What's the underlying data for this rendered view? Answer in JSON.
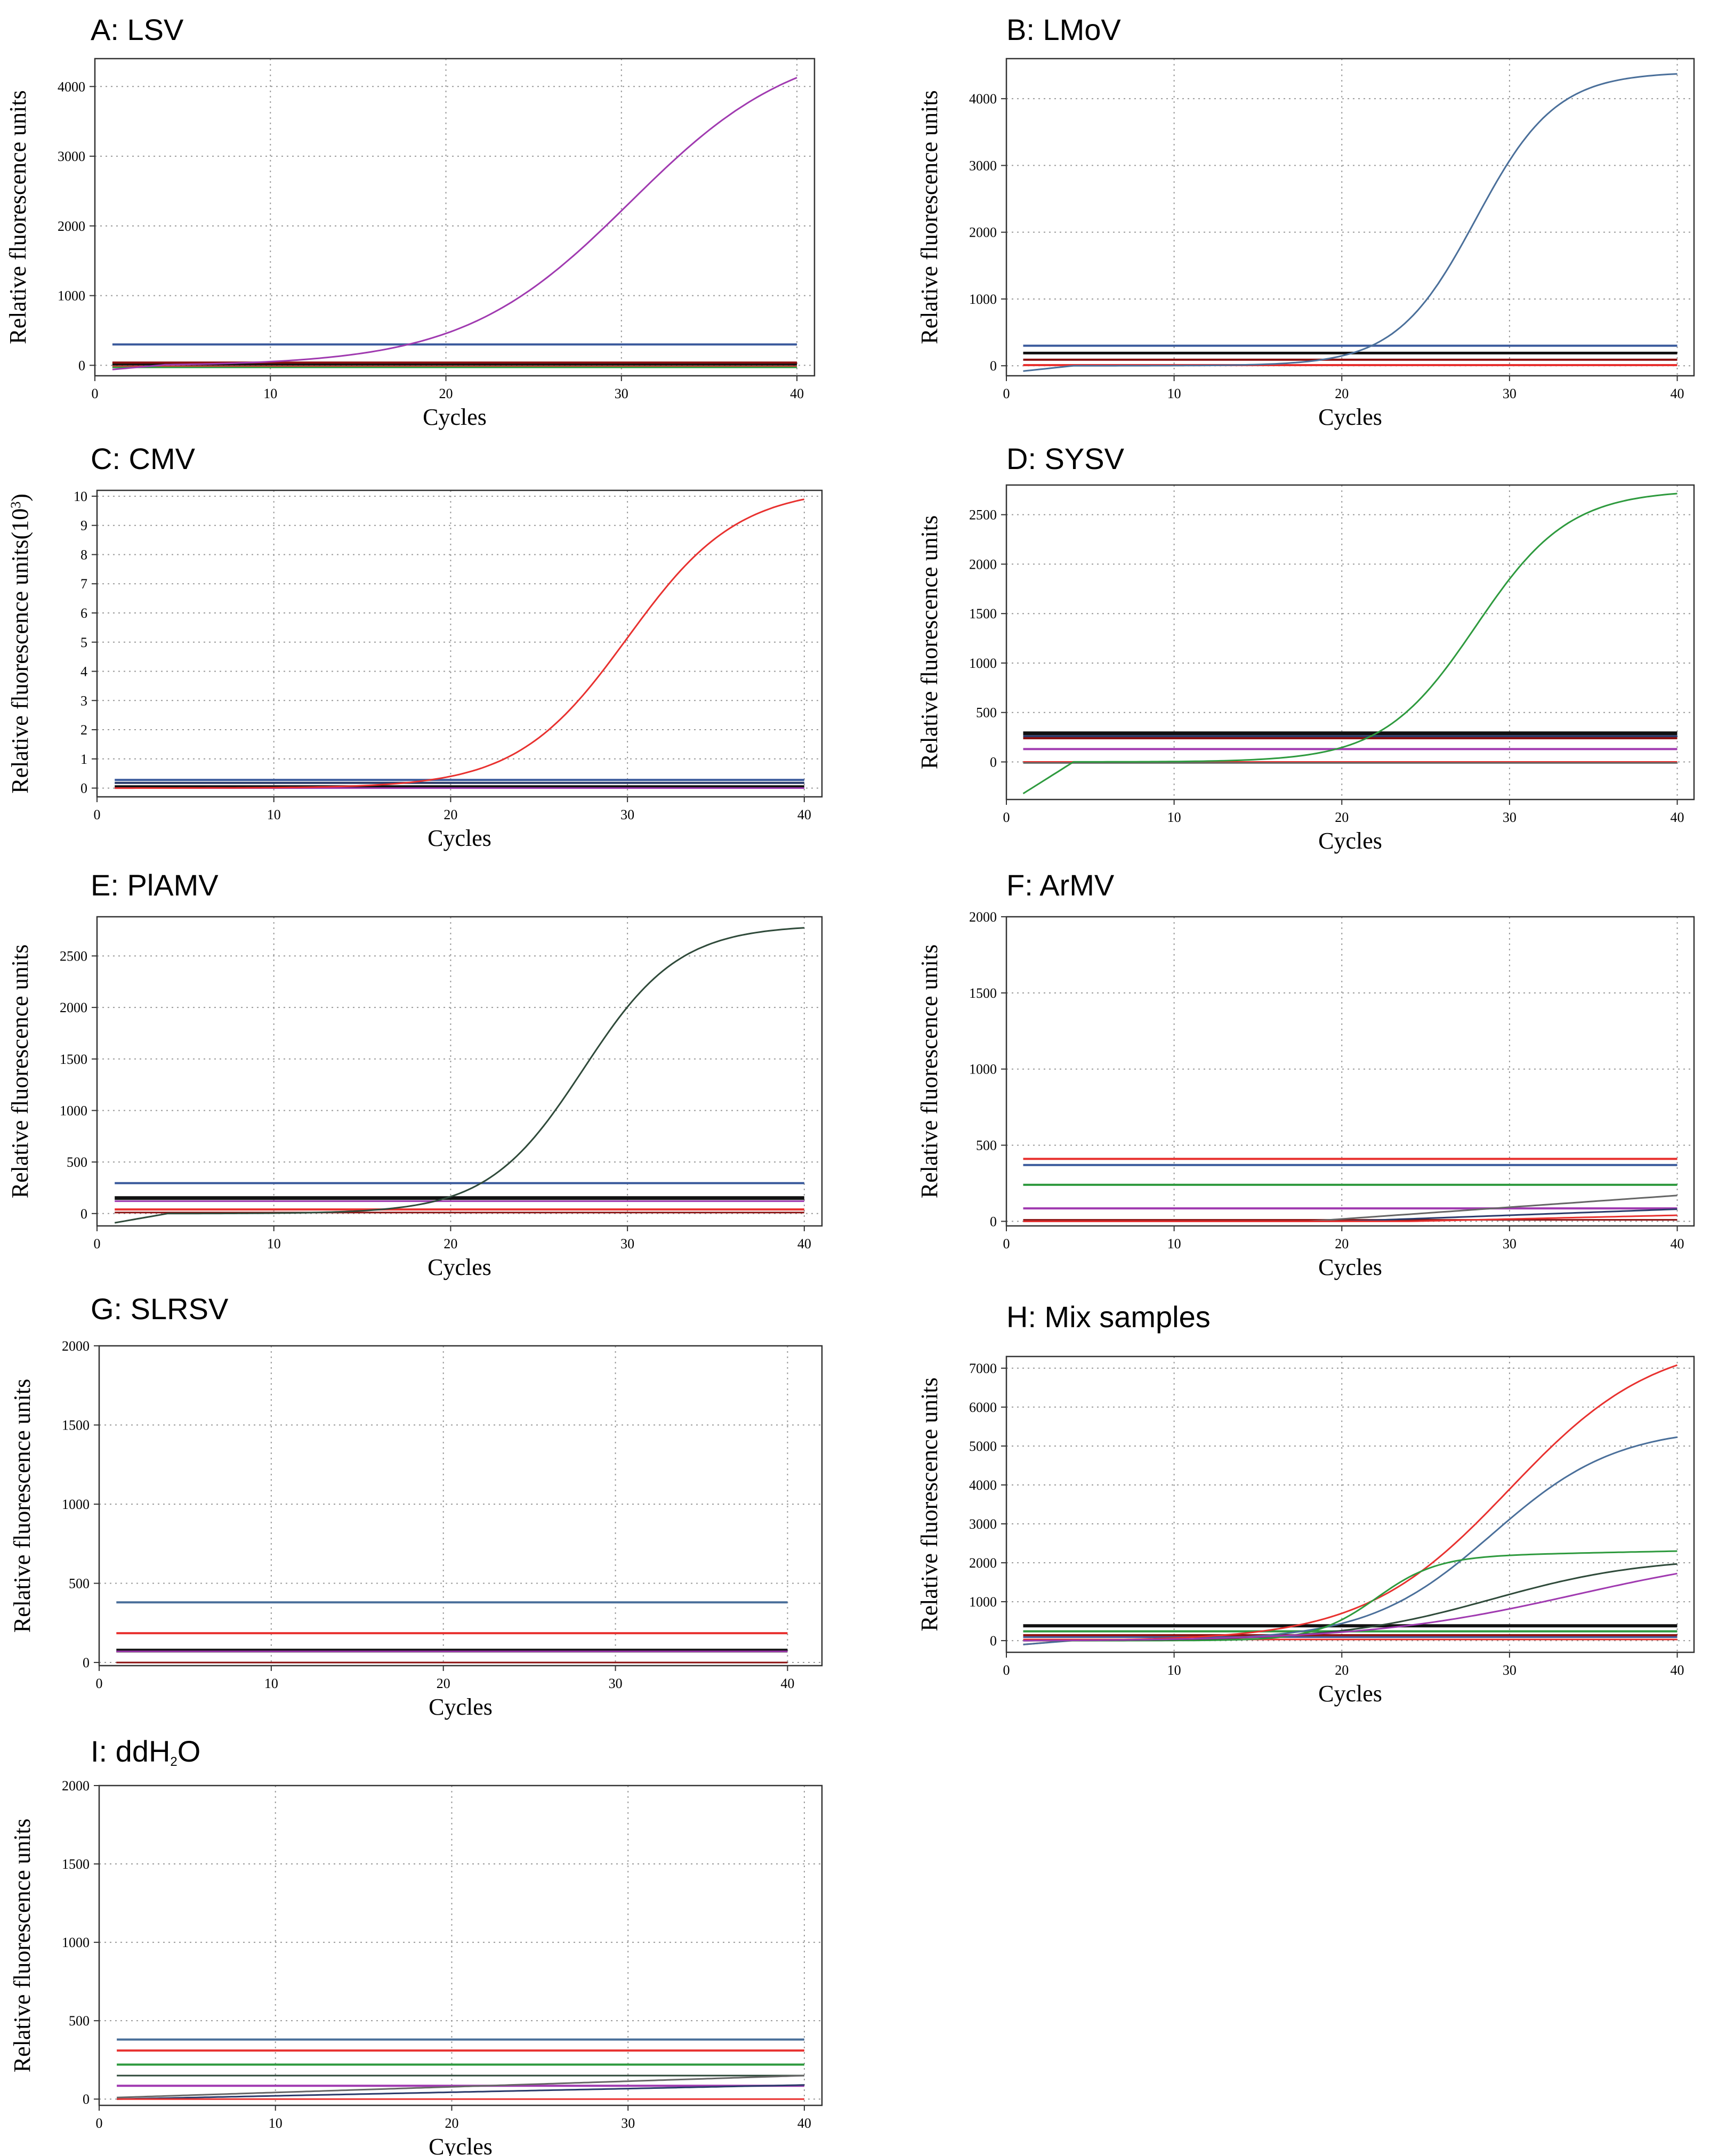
{
  "colors": {
    "red": "#e8312f",
    "blue": "#3a5a9c",
    "purple": "#a03ab0",
    "green": "#2e9a3e",
    "black": "#111111",
    "darkred": "#8b1010",
    "darkgreen": "#2f4a3a",
    "grey": "#666666",
    "navy": "#2a3a6a",
    "steel": "#4a6f9a"
  },
  "chart_data": [
    {
      "id": "A",
      "title": "A: LSV",
      "type": "line",
      "xlabel": "Cycles",
      "ylabel": "Relative fluorescence units",
      "xlim": [
        0,
        41
      ],
      "ylim": [
        -150,
        4400
      ],
      "xticks": [
        0,
        10,
        20,
        30,
        40
      ],
      "yticks": [
        0,
        1000,
        2000,
        3000,
        4000
      ],
      "ytick_labels": [
        "0",
        "1000",
        "2000",
        "3000",
        "4000"
      ],
      "series": [
        {
          "color": "blue",
          "kind": "flat",
          "value": 300,
          "width": 4
        },
        {
          "color": "black",
          "kind": "flat",
          "value": 20,
          "width": 6
        },
        {
          "color": "red",
          "kind": "flat",
          "value": -20,
          "width": 4
        },
        {
          "color": "green",
          "kind": "flat",
          "value": -30,
          "width": 3
        },
        {
          "color": "darkred",
          "kind": "flat",
          "value": 40,
          "width": 4
        },
        {
          "color": "purple",
          "kind": "sigmoid",
          "base": 0,
          "amp": 4700,
          "mid": 30.5,
          "k": 0.21,
          "start": -60
        }
      ]
    },
    {
      "id": "B",
      "title": "B: LMoV",
      "type": "line",
      "xlabel": "Cycles",
      "ylabel": "Relative fluorescence units",
      "xlim": [
        0,
        41
      ],
      "ylim": [
        -150,
        4600
      ],
      "xticks": [
        0,
        10,
        20,
        30,
        40
      ],
      "yticks": [
        0,
        1000,
        2000,
        3000,
        4000
      ],
      "ytick_labels": [
        "0",
        "1000",
        "2000",
        "3000",
        "4000"
      ],
      "series": [
        {
          "color": "blue",
          "kind": "flat",
          "value": 300,
          "width": 4
        },
        {
          "color": "black",
          "kind": "flat",
          "value": 190,
          "width": 5
        },
        {
          "color": "darkred",
          "kind": "flat",
          "value": 90,
          "width": 4
        },
        {
          "color": "red",
          "kind": "flat",
          "value": 10,
          "width": 4
        },
        {
          "color": "steel",
          "kind": "sigmoid",
          "base": 0,
          "amp": 4400,
          "mid": 28.0,
          "k": 0.42,
          "start": -80
        }
      ]
    },
    {
      "id": "C",
      "title": "C: CMV",
      "type": "line",
      "xlabel": "Cycles",
      "ylabel": "Relative fluorescence units(10",
      "ylabel_sup": "3",
      "ylabel_end": ")",
      "xlim": [
        0,
        41
      ],
      "ylim": [
        -0.3,
        10.2
      ],
      "xticks": [
        0,
        10,
        20,
        30,
        40
      ],
      "yticks": [
        0,
        1,
        2,
        3,
        4,
        5,
        6,
        7,
        8,
        9,
        10
      ],
      "ytick_labels": [
        "0",
        "1",
        "2",
        "3",
        "4",
        "5",
        "6",
        "7",
        "8",
        "9",
        "10"
      ],
      "series": [
        {
          "color": "blue",
          "kind": "flat",
          "value": 0.28,
          "width": 4
        },
        {
          "color": "navy",
          "kind": "flat",
          "value": 0.18,
          "width": 4
        },
        {
          "color": "black",
          "kind": "flat",
          "value": 0.05,
          "width": 5
        },
        {
          "color": "purple",
          "kind": "flat",
          "value": 0.0,
          "width": 3
        },
        {
          "color": "red",
          "kind": "sigmoid",
          "base": 0,
          "amp": 10.3,
          "mid": 30.0,
          "k": 0.32,
          "start": 0
        }
      ]
    },
    {
      "id": "D",
      "title": "D: SYSV",
      "type": "line",
      "xlabel": "Cycles",
      "ylabel": "Relative fluorescence units",
      "xlim": [
        0,
        41
      ],
      "ylim": [
        -380,
        2800
      ],
      "xticks": [
        0,
        10,
        20,
        30,
        40
      ],
      "yticks": [
        0,
        500,
        1000,
        1500,
        2000,
        2500
      ],
      "ytick_labels": [
        "0",
        "500",
        "1000",
        "1500",
        "2000",
        "2500"
      ],
      "series": [
        {
          "color": "black",
          "kind": "flat",
          "value": 290,
          "width": 7
        },
        {
          "color": "navy",
          "kind": "flat",
          "value": 260,
          "width": 4
        },
        {
          "color": "darkred",
          "kind": "flat",
          "value": 240,
          "width": 4
        },
        {
          "color": "purple",
          "kind": "flat",
          "value": 130,
          "width": 4
        },
        {
          "color": "red",
          "kind": "flat",
          "value": 0,
          "width": 3
        },
        {
          "color": "grey",
          "kind": "flat",
          "value": -10,
          "width": 3
        },
        {
          "color": "green",
          "kind": "sigmoid",
          "base": 0,
          "amp": 2750,
          "mid": 28.0,
          "k": 0.36,
          "start": -320
        }
      ]
    },
    {
      "id": "E",
      "title": "E: PlAMV",
      "type": "line",
      "xlabel": "Cycles",
      "ylabel": "Relative fluorescence units",
      "xlim": [
        0,
        41
      ],
      "ylim": [
        -120,
        2880
      ],
      "xticks": [
        0,
        10,
        20,
        30,
        40
      ],
      "yticks": [
        0,
        500,
        1000,
        1500,
        2000,
        2500
      ],
      "ytick_labels": [
        "0",
        "500",
        "1000",
        "1500",
        "2000",
        "2500"
      ],
      "series": [
        {
          "color": "blue",
          "kind": "flat",
          "value": 295,
          "width": 4
        },
        {
          "color": "black",
          "kind": "flat",
          "value": 150,
          "width": 7
        },
        {
          "color": "purple",
          "kind": "flat",
          "value": 120,
          "width": 3
        },
        {
          "color": "red",
          "kind": "flat",
          "value": 40,
          "width": 4
        },
        {
          "color": "darkred",
          "kind": "flat",
          "value": 10,
          "width": 3
        },
        {
          "color": "darkgreen",
          "kind": "sigmoid",
          "base": 0,
          "amp": 2800,
          "mid": 27.5,
          "k": 0.37,
          "start": -90
        }
      ]
    },
    {
      "id": "F",
      "title": "F: ArMV",
      "type": "line",
      "xlabel": "Cycles",
      "ylabel": "Relative fluorescence units",
      "xlim": [
        0,
        41
      ],
      "ylim": [
        -30,
        2000
      ],
      "xticks": [
        0,
        10,
        20,
        30,
        40
      ],
      "yticks": [
        0,
        500,
        1000,
        1500,
        2000
      ],
      "ytick_labels": [
        "0",
        "500",
        "1000",
        "1500",
        "2000"
      ],
      "series": [
        {
          "color": "red",
          "kind": "flat",
          "value": 410,
          "width": 4
        },
        {
          "color": "blue",
          "kind": "flat",
          "value": 370,
          "width": 4
        },
        {
          "color": "green",
          "kind": "flat",
          "value": 240,
          "width": 4
        },
        {
          "color": "purple",
          "kind": "flat",
          "value": 85,
          "width": 4
        },
        {
          "color": "darkred",
          "kind": "flat",
          "value": 10,
          "width": 3
        },
        {
          "color": "grey",
          "kind": "linear",
          "from": 0,
          "to": 170,
          "start_x": 18
        },
        {
          "color": "navy",
          "kind": "linear",
          "from": 0,
          "to": 80,
          "start_x": 20
        },
        {
          "color": "red",
          "kind": "linear",
          "from": 0,
          "to": 40,
          "start_x": 24
        }
      ]
    },
    {
      "id": "G",
      "title": "G: SLRSV",
      "type": "line",
      "xlabel": "Cycles",
      "ylabel": "Relative fluorescence units",
      "xlim": [
        0,
        42
      ],
      "ylim": [
        -20,
        2000
      ],
      "xticks": [
        0,
        10,
        20,
        30,
        40
      ],
      "yticks": [
        0,
        500,
        1000,
        1500,
        2000
      ],
      "ytick_labels": [
        "0",
        "500",
        "1000",
        "1500",
        "2000"
      ],
      "series": [
        {
          "color": "steel",
          "kind": "flat",
          "value": 380,
          "width": 4
        },
        {
          "color": "red",
          "kind": "flat",
          "value": 185,
          "width": 4
        },
        {
          "color": "black",
          "kind": "flat",
          "value": 75,
          "width": 7
        },
        {
          "color": "purple",
          "kind": "flat",
          "value": 70,
          "width": 3
        },
        {
          "color": "darkred",
          "kind": "flat",
          "value": 0,
          "width": 3
        }
      ]
    },
    {
      "id": "H",
      "title": "H: Mix samples",
      "type": "line",
      "xlabel": "Cycles",
      "ylabel": "Relative fluorescence units",
      "xlim": [
        0,
        41
      ],
      "ylim": [
        -300,
        7300
      ],
      "xticks": [
        0,
        10,
        20,
        30,
        40
      ],
      "yticks": [
        0,
        1000,
        2000,
        3000,
        4000,
        5000,
        6000,
        7000
      ],
      "ytick_labels": [
        "0",
        "1000",
        "2000",
        "3000",
        "4000",
        "5000",
        "6000",
        "7000"
      ],
      "series": [
        {
          "color": "black",
          "kind": "flat",
          "value": 380,
          "width": 6
        },
        {
          "color": "green",
          "kind": "flat",
          "value": 240,
          "width": 4
        },
        {
          "color": "darkred",
          "kind": "flat",
          "value": 140,
          "width": 4
        },
        {
          "color": "blue",
          "kind": "flat",
          "value": 90,
          "width": 3
        },
        {
          "color": "red",
          "kind": "flat",
          "value": 30,
          "width": 3
        },
        {
          "color": "red",
          "kind": "sigmoid",
          "base": 0,
          "amp": 7800,
          "mid": 30.0,
          "k": 0.23,
          "start": -100
        },
        {
          "color": "steel",
          "kind": "sigmoid",
          "base": 0,
          "amp": 5500,
          "mid": 29.0,
          "k": 0.27,
          "start": -100
        },
        {
          "color": "green",
          "kind": "sigmoid",
          "base": 0,
          "amp": 2150,
          "mid": 22.0,
          "k": 0.55,
          "start": 0,
          "tail": 150
        },
        {
          "color": "darkgreen",
          "kind": "sigmoid",
          "base": 0,
          "amp": 2150,
          "mid": 29.0,
          "k": 0.22,
          "start": 0
        },
        {
          "color": "purple",
          "kind": "sigmoid",
          "base": 0,
          "amp": 2400,
          "mid": 34.0,
          "k": 0.16,
          "start": 0
        }
      ]
    },
    {
      "id": "I",
      "title": "I: ddH",
      "title_sub": "2",
      "title_end": "O",
      "type": "line",
      "xlabel": "Cycles",
      "ylabel": "Relative fluorescence units",
      "xlim": [
        0,
        41
      ],
      "ylim": [
        -40,
        2000
      ],
      "xticks": [
        0,
        10,
        20,
        30,
        40
      ],
      "yticks": [
        0,
        500,
        1000,
        1500,
        2000
      ],
      "ytick_labels": [
        "0",
        "500",
        "1000",
        "1500",
        "2000"
      ],
      "series": [
        {
          "color": "steel",
          "kind": "flat",
          "value": 380,
          "width": 4
        },
        {
          "color": "red",
          "kind": "flat",
          "value": 310,
          "width": 4
        },
        {
          "color": "green",
          "kind": "flat",
          "value": 220,
          "width": 4
        },
        {
          "color": "darkgreen",
          "kind": "flat",
          "value": 150,
          "width": 3
        },
        {
          "color": "purple",
          "kind": "flat",
          "value": 85,
          "width": 4
        },
        {
          "color": "grey",
          "kind": "linear",
          "from": 10,
          "to": 150,
          "start_x": 1
        },
        {
          "color": "navy",
          "kind": "linear",
          "from": 0,
          "to": 90,
          "start_x": 1
        },
        {
          "color": "red",
          "kind": "flat",
          "value": 0,
          "width": 3
        }
      ]
    }
  ]
}
